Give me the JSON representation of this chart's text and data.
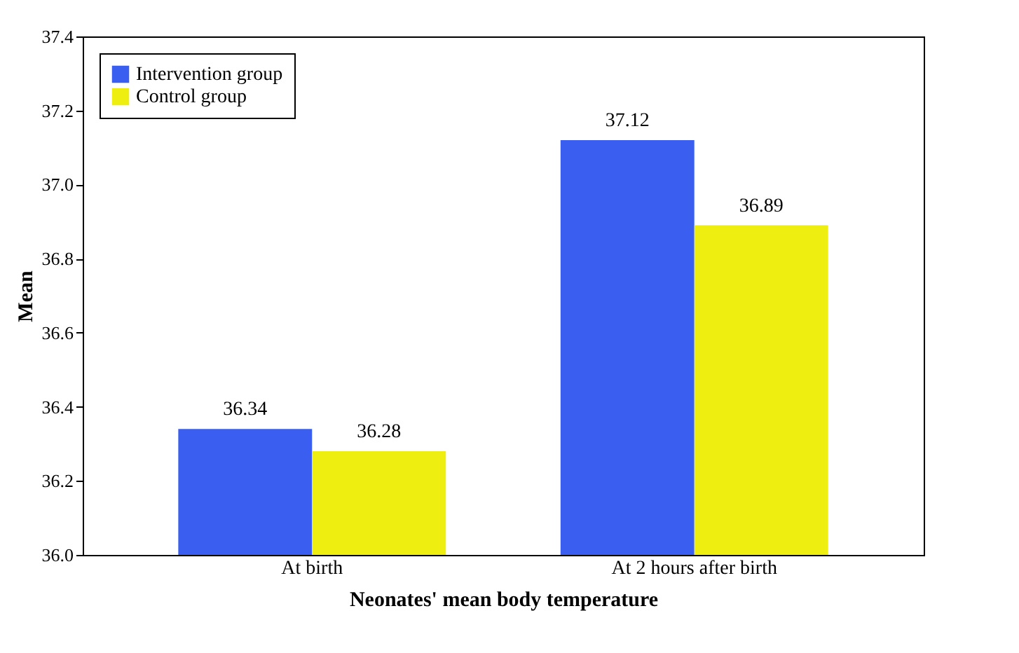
{
  "chart_data": {
    "type": "bar",
    "xlabel": "Neonates' mean body temperature",
    "ylabel": "Mean",
    "categories": [
      "At birth",
      "At 2 hours after birth"
    ],
    "series": [
      {
        "name": "Intervention group",
        "color": "#3a5ff0",
        "values": [
          36.34,
          37.12
        ]
      },
      {
        "name": "Control group",
        "color": "#eeee10",
        "values": [
          36.28,
          36.89
        ]
      }
    ],
    "ylim": [
      36.0,
      37.4
    ],
    "yticks": [
      {
        "value": 36,
        "label": "36.0"
      },
      36.2,
      36.4,
      36.6,
      36.8,
      {
        "value": 37,
        "label": "37.0"
      },
      37.2,
      37.4
    ],
    "data_labels": true,
    "legend": "top left"
  }
}
